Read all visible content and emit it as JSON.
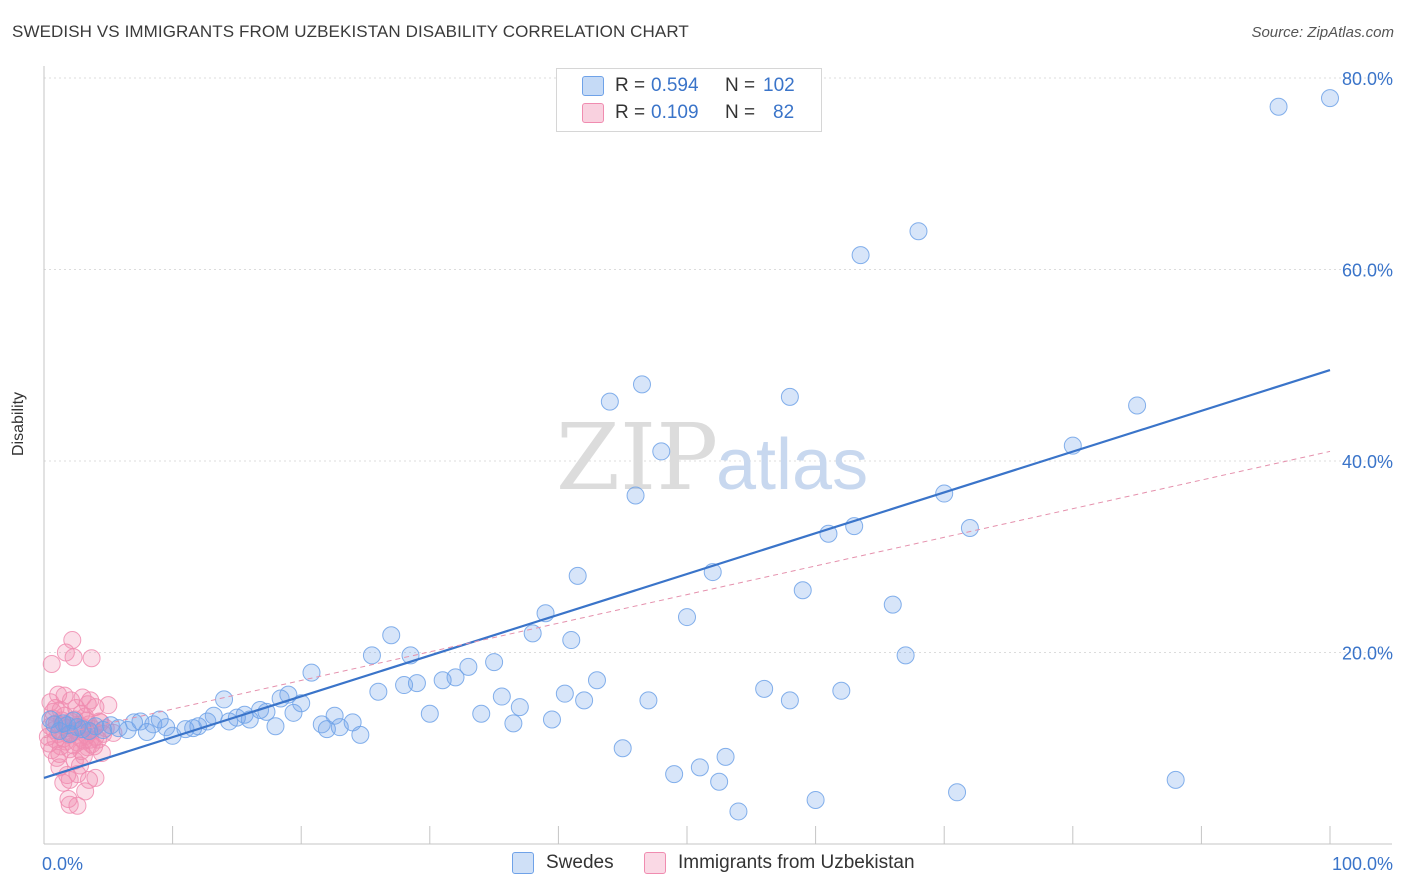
{
  "title": "SWEDISH VS IMMIGRANTS FROM UZBEKISTAN DISABILITY CORRELATION CHART",
  "source": "Source: ZipAtlas.com",
  "watermark": {
    "zip": "ZIP",
    "atlas": "atlas"
  },
  "legend": {
    "rows": [
      {
        "r_label": "R =",
        "r_value": "0.594",
        "n_label": "N =",
        "n_value": "102",
        "color": "#6fa2e8"
      },
      {
        "r_label": "R =",
        "r_value": "0.109",
        "n_label": "N =",
        "n_value": "82",
        "color": "#f08cb0"
      }
    ]
  },
  "bottom_legend": {
    "items": [
      {
        "label": "Swedes",
        "color": "#6fa2e8"
      },
      {
        "label": "Immigrants from Uzbekistan",
        "color": "#f08cb0"
      }
    ]
  },
  "chart_data": {
    "type": "scatter",
    "xlabel": "",
    "ylabel": "Disability",
    "xlim": [
      0,
      100
    ],
    "ylim": [
      0,
      80
    ],
    "x_tick_labels": [
      {
        "value": 0,
        "label": "0.0%"
      },
      {
        "value": 100,
        "label": "100.0%"
      }
    ],
    "y_tick_labels": [
      {
        "value": 20,
        "label": "20.0%"
      },
      {
        "value": 40,
        "label": "40.0%"
      },
      {
        "value": 60,
        "label": "60.0%"
      },
      {
        "value": 80,
        "label": "80.0%"
      }
    ],
    "x_minor_ticks": [
      0,
      10,
      20,
      30,
      40,
      50,
      60,
      70,
      80,
      90,
      100
    ],
    "grid": "horizontal dashed",
    "series": [
      {
        "name": "Swedes",
        "color": "#6fa2e8",
        "trend": {
          "x0": 0,
          "y0": 6.9,
          "x1": 100,
          "y1": 49.5,
          "style": "solid"
        },
        "points": [
          [
            0.5,
            13
          ],
          [
            0.8,
            12.5
          ],
          [
            1.2,
            11.8
          ],
          [
            1.5,
            12.6
          ],
          [
            1.8,
            12.4
          ],
          [
            2,
            11.5
          ],
          [
            2.3,
            12.9
          ],
          [
            2.6,
            12.2
          ],
          [
            3.0,
            12.0
          ],
          [
            3.5,
            11.8
          ],
          [
            4,
            12.3
          ],
          [
            4.6,
            11.9
          ],
          [
            5.2,
            12.4
          ],
          [
            5.8,
            12.1
          ],
          [
            6.5,
            11.9
          ],
          [
            7,
            12.7
          ],
          [
            7.5,
            12.8
          ],
          [
            8.0,
            11.7
          ],
          [
            8.5,
            12.5
          ],
          [
            9.0,
            13.0
          ],
          [
            9.5,
            12.2
          ],
          [
            10.0,
            11.3
          ],
          [
            11,
            12
          ],
          [
            11.6,
            12.1
          ],
          [
            12.0,
            12.3
          ],
          [
            12.7,
            12.8
          ],
          [
            13.2,
            13.4
          ],
          [
            14,
            15.1
          ],
          [
            14.4,
            12.8
          ],
          [
            15.0,
            13.2
          ],
          [
            15.6,
            13.5
          ],
          [
            16.0,
            13.0
          ],
          [
            16.8,
            14
          ],
          [
            17.3,
            13.8
          ],
          [
            18.0,
            12.3
          ],
          [
            18.4,
            15.2
          ],
          [
            19.0,
            15.6
          ],
          [
            19.4,
            13.7
          ],
          [
            20.0,
            14.7
          ],
          [
            20.8,
            17.9
          ],
          [
            21.6,
            12.5
          ],
          [
            22.0,
            12.0
          ],
          [
            22.6,
            13.4
          ],
          [
            23.0,
            12.2
          ],
          [
            24.0,
            12.7
          ],
          [
            24.6,
            11.4
          ],
          [
            25.5,
            19.7
          ],
          [
            26.0,
            15.9
          ],
          [
            27.0,
            21.8
          ],
          [
            28.0,
            16.6
          ],
          [
            28.5,
            19.7
          ],
          [
            29.0,
            16.8
          ],
          [
            30.0,
            13.6
          ],
          [
            31.0,
            17.1
          ],
          [
            32.0,
            17.4
          ],
          [
            33.0,
            18.5
          ],
          [
            34.0,
            13.6
          ],
          [
            35.0,
            19.0
          ],
          [
            35.6,
            15.4
          ],
          [
            36.5,
            12.6
          ],
          [
            37.0,
            14.3
          ],
          [
            38.0,
            22.0
          ],
          [
            39.0,
            24.1
          ],
          [
            39.5,
            13.0
          ],
          [
            40.5,
            15.7
          ],
          [
            41.0,
            21.3
          ],
          [
            41.5,
            28.0
          ],
          [
            42.0,
            15.0
          ],
          [
            43.0,
            17.1
          ],
          [
            44.0,
            46.2
          ],
          [
            45.0,
            10.0
          ],
          [
            46.0,
            36.4
          ],
          [
            46.5,
            48.0
          ],
          [
            47.0,
            15.0
          ],
          [
            48.0,
            41.0
          ],
          [
            49.0,
            7.3
          ],
          [
            50.0,
            23.7
          ],
          [
            51.0,
            8.0
          ],
          [
            52.0,
            28.4
          ],
          [
            52.5,
            6.5
          ],
          [
            53.0,
            9.1
          ],
          [
            54.0,
            3.4
          ],
          [
            56.0,
            16.2
          ],
          [
            58.0,
            46.7
          ],
          [
            59.0,
            26.5
          ],
          [
            60.0,
            4.6
          ],
          [
            61.0,
            32.4
          ],
          [
            62.0,
            16.0
          ],
          [
            63.0,
            33.2
          ],
          [
            63.5,
            61.5
          ],
          [
            66.0,
            25.0
          ],
          [
            67.0,
            19.7
          ],
          [
            68.0,
            64.0
          ],
          [
            70.0,
            36.6
          ],
          [
            71.0,
            5.4
          ],
          [
            72.0,
            33.0
          ],
          [
            80.0,
            41.6
          ],
          [
            85.0,
            45.8
          ],
          [
            88.0,
            6.7
          ],
          [
            96.0,
            77.0
          ],
          [
            100.0,
            77.9
          ],
          [
            58.0,
            15.0
          ]
        ]
      },
      {
        "name": "Immigrants from Uzbekistan",
        "color": "#f08cb0",
        "trend": {
          "x0": 0,
          "y0": 11.1,
          "x1": 100,
          "y1": 41.0,
          "style": "dashed"
        },
        "points": [
          [
            0.3,
            11.2
          ],
          [
            0.4,
            10.5
          ],
          [
            0.5,
            12.3
          ],
          [
            0.6,
            9.8
          ],
          [
            0.7,
            13.1
          ],
          [
            0.8,
            11.9
          ],
          [
            0.9,
            10.9
          ],
          [
            1.0,
            12.6
          ],
          [
            1.1,
            11.5
          ],
          [
            1.2,
            9.4
          ],
          [
            1.3,
            10.2
          ],
          [
            1.4,
            12.9
          ],
          [
            1.5,
            11.0
          ],
          [
            1.6,
            13.4
          ],
          [
            1.7,
            10.7
          ],
          [
            1.8,
            12.1
          ],
          [
            1.9,
            11.4
          ],
          [
            2.0,
            9.9
          ],
          [
            2.1,
            12.8
          ],
          [
            2.2,
            11.6
          ],
          [
            2.3,
            10.3
          ],
          [
            2.4,
            13.0
          ],
          [
            2.5,
            11.8
          ],
          [
            2.6,
            10.6
          ],
          [
            2.7,
            12.4
          ],
          [
            2.8,
            11.1
          ],
          [
            2.9,
            9.7
          ],
          [
            3.0,
            12.2
          ],
          [
            3.1,
            10.8
          ],
          [
            3.2,
            13.3
          ],
          [
            3.3,
            11.3
          ],
          [
            3.4,
            10.1
          ],
          [
            3.5,
            12.5
          ],
          [
            3.6,
            11.7
          ],
          [
            3.7,
            10.4
          ],
          [
            3.8,
            12.0
          ],
          [
            4.0,
            11.2
          ],
          [
            4.2,
            10.9
          ],
          [
            4.4,
            12.7
          ],
          [
            4.6,
            11.5
          ],
          [
            0.6,
            18.8
          ],
          [
            1.7,
            20.0
          ],
          [
            2.3,
            19.5
          ],
          [
            2.2,
            21.3
          ],
          [
            3.7,
            19.4
          ],
          [
            1.6,
            15.5
          ],
          [
            2.1,
            15.0
          ],
          [
            2.5,
            14.2
          ],
          [
            3.0,
            15.3
          ],
          [
            3.4,
            14.6
          ],
          [
            4.0,
            14.3
          ],
          [
            5.0,
            14.5
          ],
          [
            3.6,
            15.0
          ],
          [
            1.2,
            8.0
          ],
          [
            1.8,
            7.2
          ],
          [
            2.0,
            6.7
          ],
          [
            2.6,
            7.3
          ],
          [
            1.5,
            6.4
          ],
          [
            3.2,
            5.5
          ],
          [
            3.5,
            6.7
          ],
          [
            2.0,
            4.1
          ],
          [
            2.6,
            4.0
          ],
          [
            1.9,
            4.7
          ],
          [
            4.0,
            6.9
          ],
          [
            0.9,
            14.2
          ],
          [
            1.1,
            15.6
          ],
          [
            0.7,
            13.8
          ],
          [
            1.3,
            14.0
          ],
          [
            4.8,
            12.1
          ],
          [
            5.4,
            11.6
          ],
          [
            2.8,
            8.2
          ],
          [
            3.9,
            10.2
          ],
          [
            3.1,
            9.2
          ],
          [
            4.3,
            12.8
          ],
          [
            0.5,
            14.8
          ],
          [
            1.0,
            9.0
          ],
          [
            2.4,
            8.7
          ],
          [
            3.6,
            10.9
          ],
          [
            4.5,
            9.5
          ],
          [
            1.4,
            12.4
          ],
          [
            2.9,
            13.6
          ],
          [
            3.3,
            12.9
          ]
        ]
      }
    ]
  }
}
